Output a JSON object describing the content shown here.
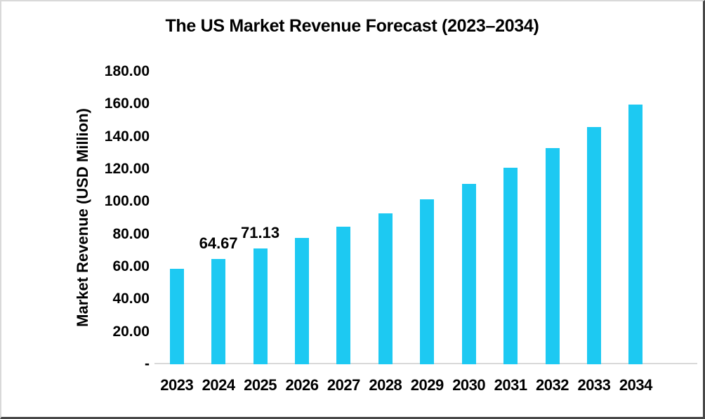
{
  "chart_data": {
    "type": "bar",
    "title": "The US Market Revenue Forecast (2023–2034)",
    "xlabel": "",
    "ylabel": "Market Revenue (USD Million)",
    "ylim": [
      0,
      180
    ],
    "y_tick_step": 20,
    "grid": false,
    "legend": "none",
    "background_color": "#FFFFFF",
    "bar_color": "#1DC9F2",
    "axis_line_color": "#D9D9D9",
    "text_color": "#000000",
    "y_ticks": [
      {
        "value": 180,
        "label": "180.00"
      },
      {
        "value": 160,
        "label": "160.00"
      },
      {
        "value": 140,
        "label": "140.00"
      },
      {
        "value": 120,
        "label": "120.00"
      },
      {
        "value": 100,
        "label": "100.00"
      },
      {
        "value": 80,
        "label": "80.00"
      },
      {
        "value": 60,
        "label": "60.00"
      },
      {
        "value": 40,
        "label": "40.00"
      },
      {
        "value": 20,
        "label": "20.00"
      },
      {
        "value": 0,
        "label": "-"
      }
    ],
    "categories": [
      "2023",
      "2024",
      "2025",
      "2026",
      "2027",
      "2028",
      "2029",
      "2030",
      "2031",
      "2032",
      "2033",
      "2034"
    ],
    "values": [
      58.79,
      64.67,
      71.13,
      77.9,
      84.6,
      92.8,
      101.4,
      110.9,
      121.0,
      132.8,
      145.9,
      159.8
    ],
    "data_labels": [
      "",
      "64.67",
      "71.13",
      "",
      "",
      "",
      "",
      "",
      "",
      "",
      "",
      ""
    ]
  }
}
